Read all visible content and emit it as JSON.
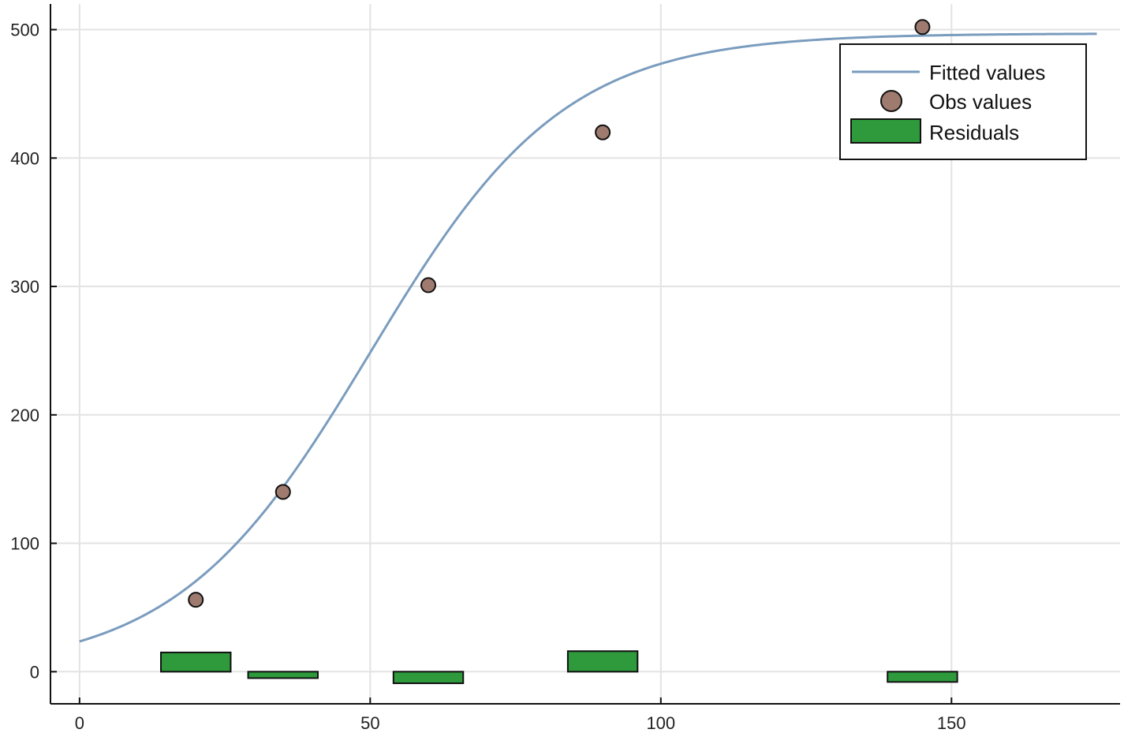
{
  "chart_data": {
    "type": "line",
    "title": "",
    "xlabel": "",
    "ylabel": "",
    "xlim": [
      -5,
      179
    ],
    "ylim": [
      -25,
      520
    ],
    "xticks": [
      0,
      50,
      100,
      150
    ],
    "yticks": [
      0,
      100,
      200,
      300,
      400,
      500
    ],
    "grid": true,
    "legend": {
      "placement": "top-right",
      "entries": [
        "Fitted values",
        "Obs values",
        "Residuals"
      ]
    },
    "series": [
      {
        "name": "Fitted values",
        "kind": "line",
        "color": "#7a9cbe",
        "model": "logistic",
        "params": {
          "upper": 497,
          "midpoint": 50,
          "rate": 0.06
        },
        "x_range": [
          0,
          175
        ]
      },
      {
        "name": "Obs values",
        "kind": "scatter",
        "color": "#9e7b6e",
        "x": [
          20,
          35,
          60,
          90,
          145
        ],
        "y": [
          56,
          140,
          301,
          420,
          502
        ]
      },
      {
        "name": "Residuals",
        "kind": "bar",
        "color": "#2e9a3c",
        "bar_width": 12,
        "x": [
          20,
          35,
          60,
          90,
          145
        ],
        "y": [
          15,
          -5,
          -9,
          16,
          -8
        ]
      }
    ]
  }
}
